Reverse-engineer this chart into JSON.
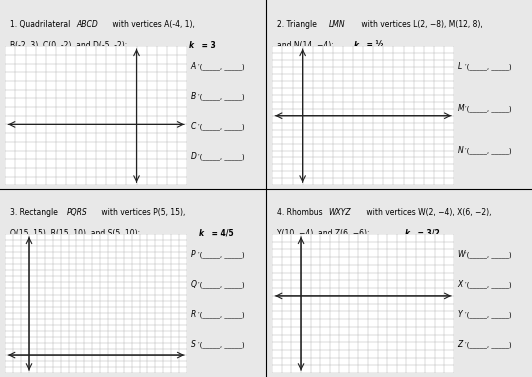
{
  "background_color": "#f0f0f0",
  "panel_bg": "#ffffff",
  "grid_color": "#aaaaaa",
  "axis_color": "#000000",
  "title_color": "#000000",
  "panels": [
    {
      "title": "1. Quadrilateral ",
      "title_italic": "ABCD",
      "title_rest": " with vertices ",
      "line2_italic": "A",
      "line2": "(-4, 1),",
      "line2b_italic": "B",
      "line2b": "(-2, 3), ",
      "line2c_italic": "C",
      "line2c": "(0, -2), and ",
      "line2d_italic": "D",
      "line2d": "(-5, -2):  ",
      "k_label": "k",
      "k_val": " = 3",
      "xlim": [
        -10,
        6
      ],
      "ylim": [
        -8,
        8
      ],
      "xticks_step": 1,
      "yticks_step": 1,
      "answer_labels": [
        "A′(_____, _____)",
        "B′(_____, _____)",
        "C′(_____, _____)",
        "D′(_____, _____)"
      ]
    },
    {
      "title": "2. Triangle ",
      "title_italic": "LMN",
      "title_rest": " with vertices ",
      "line2": "L(2, -8), M(12, 8),",
      "line3": "and N(14, -4):  ",
      "k_label": "k",
      "k_val": " = ½",
      "xlim": [
        -2,
        16
      ],
      "ylim": [
        -10,
        10
      ],
      "xticks_step": 1,
      "yticks_step": 1,
      "answer_labels": [
        "L′(_____, _____)",
        "M′(_____, _____)",
        "N′(_____, _____)"
      ]
    },
    {
      "title": "3. Rectangle ",
      "title_italic": "PQRS",
      "title_rest": " with vertices P(5, 15),",
      "line2": "Q(15, 15), R(15, 10), and S(5, 10):  ",
      "k_label": "k",
      "k_val": " = 4/5",
      "xlim": [
        -2,
        20
      ],
      "ylim": [
        -2,
        20
      ],
      "xticks_step": 1,
      "yticks_step": 1,
      "answer_labels": [
        "P′(_____, _____)",
        "Q′(_____, _____)",
        "R′(_____, _____)",
        "S′(_____, _____)"
      ]
    },
    {
      "title": "4. Rhombus ",
      "title_italic": "WXYZ",
      "title_rest": " with vertices W(2, -4), X(6, -2),",
      "line2": "Y(10, -4), and Z(6, -6):  ",
      "k_label": "k",
      "k_val": " = 3/2",
      "xlim": [
        -2,
        16
      ],
      "ylim": [
        -10,
        6
      ],
      "xticks_step": 1,
      "yticks_step": 1,
      "answer_labels": [
        "W′(_____, _____)",
        "X′(_____, _____)",
        "Y′(_____, _____)",
        "Z′(_____, _____)"
      ]
    }
  ]
}
